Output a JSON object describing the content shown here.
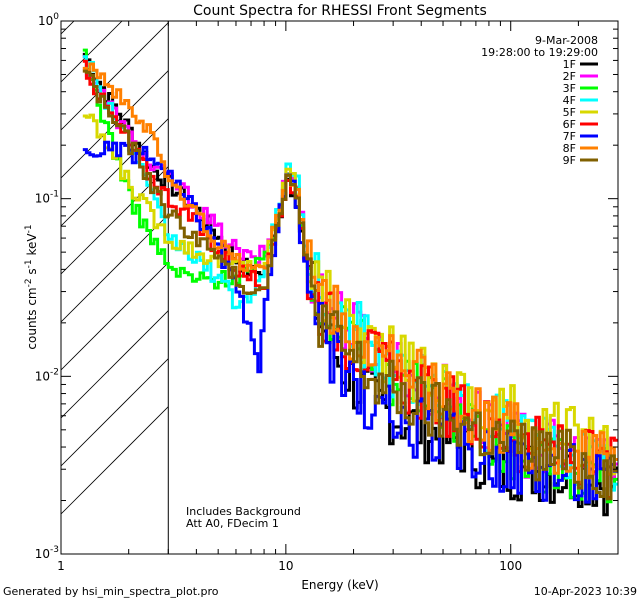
{
  "chart_data": {
    "type": "line",
    "title": "Count Spectra for RHESSI Front Segments",
    "xlabel": "Energy (keV)",
    "ylabel_main": "counts cm",
    "ylabel_exp1": "-2",
    "ylabel_mid": " s",
    "ylabel_exp2": "-1",
    "ylabel_mid2": " keV",
    "ylabel_exp3": "-1",
    "x_scale": "log",
    "y_scale": "log",
    "xlim": [
      1,
      300
    ],
    "ylim": [
      0.001,
      1
    ],
    "x_ticks": [
      {
        "value": 10,
        "label": "10"
      },
      {
        "value": 100,
        "label": "100"
      }
    ],
    "x_tick_label_first": "1",
    "y_ticks": [
      {
        "value": 1,
        "base": "10",
        "exp": "0"
      },
      {
        "value": 0.1,
        "base": "10",
        "exp": "-1"
      },
      {
        "value": 0.01,
        "base": "10",
        "exp": "-2"
      },
      {
        "value": 0.001,
        "base": "10",
        "exp": "-3"
      }
    ],
    "shaded_region_max_keV": 3,
    "date": "9-Mar-2008",
    "time_range": "19:28:00 to 19:29:00",
    "annotation_line1": "Includes Background",
    "annotation_line2": "Att A0, FDecim 1",
    "legend_position": "top-right",
    "series": [
      {
        "name": "1F",
        "color": "#000000",
        "points": [
          [
            1.25,
            0.65
          ],
          [
            1.5,
            0.42
          ],
          [
            2,
            0.24
          ],
          [
            2.5,
            0.15
          ],
          [
            3,
            0.12
          ],
          [
            4,
            0.085
          ],
          [
            5,
            0.06
          ],
          [
            6,
            0.045
          ],
          [
            7,
            0.038
          ],
          [
            8,
            0.04
          ],
          [
            9,
            0.07
          ],
          [
            10,
            0.13
          ],
          [
            11,
            0.1
          ],
          [
            12,
            0.045
          ],
          [
            14,
            0.02
          ],
          [
            17,
            0.012
          ],
          [
            20,
            0.009
          ],
          [
            25,
            0.007
          ],
          [
            30,
            0.006
          ],
          [
            40,
            0.005
          ],
          [
            50,
            0.0045
          ],
          [
            60,
            0.004
          ],
          [
            70,
            0.0035
          ],
          [
            80,
            0.003
          ],
          [
            100,
            0.003
          ],
          [
            120,
            0.003
          ],
          [
            150,
            0.0028
          ],
          [
            200,
            0.0028
          ],
          [
            250,
            0.0025
          ],
          [
            300,
            0.0025
          ]
        ]
      },
      {
        "name": "2F",
        "color": "#ff00ff",
        "points": [
          [
            1.25,
            0.6
          ],
          [
            1.5,
            0.38
          ],
          [
            2,
            0.22
          ],
          [
            2.5,
            0.15
          ],
          [
            3,
            0.13
          ],
          [
            4,
            0.09
          ],
          [
            5,
            0.065
          ],
          [
            6,
            0.05
          ],
          [
            7,
            0.045
          ],
          [
            8,
            0.05
          ],
          [
            9,
            0.08
          ],
          [
            10,
            0.14
          ],
          [
            11,
            0.12
          ],
          [
            12,
            0.05
          ],
          [
            14,
            0.03
          ],
          [
            17,
            0.022
          ],
          [
            20,
            0.018
          ],
          [
            25,
            0.014
          ],
          [
            30,
            0.012
          ],
          [
            40,
            0.009
          ],
          [
            50,
            0.008
          ],
          [
            60,
            0.007
          ],
          [
            70,
            0.006
          ],
          [
            80,
            0.005
          ],
          [
            100,
            0.0045
          ],
          [
            120,
            0.004
          ],
          [
            150,
            0.0038
          ],
          [
            200,
            0.0035
          ],
          [
            250,
            0.003
          ],
          [
            300,
            0.003
          ]
        ]
      },
      {
        "name": "3F",
        "color": "#00ff00",
        "points": [
          [
            1.25,
            0.62
          ],
          [
            1.5,
            0.3
          ],
          [
            2,
            0.1
          ],
          [
            2.5,
            0.06
          ],
          [
            3,
            0.04
          ],
          [
            4,
            0.035
          ],
          [
            5,
            0.035
          ],
          [
            6,
            0.037
          ],
          [
            7,
            0.04
          ],
          [
            8,
            0.045
          ],
          [
            9,
            0.075
          ],
          [
            10,
            0.14
          ],
          [
            11,
            0.11
          ],
          [
            12,
            0.05
          ],
          [
            14,
            0.028
          ],
          [
            17,
            0.02
          ],
          [
            20,
            0.016
          ],
          [
            25,
            0.012
          ],
          [
            30,
            0.01
          ],
          [
            40,
            0.008
          ],
          [
            50,
            0.007
          ],
          [
            60,
            0.006
          ],
          [
            70,
            0.005
          ],
          [
            80,
            0.0045
          ],
          [
            100,
            0.004
          ],
          [
            120,
            0.0035
          ],
          [
            150,
            0.0032
          ],
          [
            200,
            0.003
          ],
          [
            250,
            0.0028
          ],
          [
            300,
            0.0028
          ]
        ]
      },
      {
        "name": "4F",
        "color": "#00ffff",
        "points": [
          [
            1.25,
            0.68
          ],
          [
            1.5,
            0.4
          ],
          [
            2,
            0.2
          ],
          [
            2.5,
            0.1
          ],
          [
            3,
            0.06
          ],
          [
            4,
            0.045
          ],
          [
            5,
            0.035
          ],
          [
            6,
            0.025
          ],
          [
            7,
            0.03
          ],
          [
            8,
            0.04
          ],
          [
            9,
            0.08
          ],
          [
            10,
            0.16
          ],
          [
            11,
            0.12
          ],
          [
            12,
            0.05
          ],
          [
            14,
            0.03
          ],
          [
            17,
            0.022
          ],
          [
            20,
            0.018
          ],
          [
            25,
            0.014
          ],
          [
            30,
            0.011
          ],
          [
            40,
            0.009
          ],
          [
            50,
            0.008
          ],
          [
            60,
            0.007
          ],
          [
            70,
            0.006
          ],
          [
            80,
            0.0055
          ],
          [
            100,
            0.005
          ],
          [
            120,
            0.0045
          ],
          [
            150,
            0.004
          ],
          [
            200,
            0.0035
          ],
          [
            250,
            0.003
          ],
          [
            300,
            0.003
          ]
        ]
      },
      {
        "name": "5F",
        "color": "#d8d800",
        "points": [
          [
            1.25,
            0.3
          ],
          [
            1.5,
            0.22
          ],
          [
            2,
            0.12
          ],
          [
            2.5,
            0.08
          ],
          [
            3,
            0.06
          ],
          [
            4,
            0.05
          ],
          [
            5,
            0.045
          ],
          [
            6,
            0.042
          ],
          [
            7,
            0.042
          ],
          [
            8,
            0.045
          ],
          [
            9,
            0.075
          ],
          [
            10,
            0.15
          ],
          [
            11,
            0.11
          ],
          [
            12,
            0.05
          ],
          [
            14,
            0.03
          ],
          [
            17,
            0.022
          ],
          [
            20,
            0.018
          ],
          [
            25,
            0.015
          ],
          [
            30,
            0.012
          ],
          [
            40,
            0.01
          ],
          [
            50,
            0.009
          ],
          [
            60,
            0.008
          ],
          [
            70,
            0.007
          ],
          [
            80,
            0.0065
          ],
          [
            100,
            0.006
          ],
          [
            120,
            0.0055
          ],
          [
            150,
            0.005
          ],
          [
            200,
            0.0045
          ],
          [
            250,
            0.004
          ],
          [
            300,
            0.004
          ]
        ]
      },
      {
        "name": "6F",
        "color": "#ff0000",
        "points": [
          [
            1.25,
            0.58
          ],
          [
            1.5,
            0.35
          ],
          [
            2,
            0.2
          ],
          [
            2.5,
            0.13
          ],
          [
            3,
            0.1
          ],
          [
            4,
            0.07
          ],
          [
            5,
            0.05
          ],
          [
            6,
            0.04
          ],
          [
            7,
            0.035
          ],
          [
            8,
            0.035
          ],
          [
            9,
            0.07
          ],
          [
            10,
            0.13
          ],
          [
            11,
            0.1
          ],
          [
            12,
            0.045
          ],
          [
            14,
            0.025
          ],
          [
            17,
            0.018
          ],
          [
            20,
            0.015
          ],
          [
            25,
            0.012
          ],
          [
            30,
            0.01
          ],
          [
            40,
            0.008
          ],
          [
            50,
            0.007
          ],
          [
            60,
            0.006
          ],
          [
            70,
            0.0055
          ],
          [
            80,
            0.005
          ],
          [
            100,
            0.0045
          ],
          [
            120,
            0.004
          ],
          [
            150,
            0.0038
          ],
          [
            200,
            0.0035
          ],
          [
            250,
            0.003
          ],
          [
            300,
            0.003
          ]
        ]
      },
      {
        "name": "7F",
        "color": "#0000ff",
        "points": [
          [
            1.25,
            0.175
          ],
          [
            1.5,
            0.19
          ],
          [
            2,
            0.18
          ],
          [
            2.5,
            0.17
          ],
          [
            3,
            0.13
          ],
          [
            4,
            0.08
          ],
          [
            5,
            0.05
          ],
          [
            6,
            0.03
          ],
          [
            7,
            0.015
          ],
          [
            7.5,
            0.01
          ],
          [
            8,
            0.03
          ],
          [
            9,
            0.07
          ],
          [
            10,
            0.13
          ],
          [
            11,
            0.1
          ],
          [
            12,
            0.04
          ],
          [
            14,
            0.018
          ],
          [
            17,
            0.011
          ],
          [
            20,
            0.008
          ],
          [
            25,
            0.0065
          ],
          [
            30,
            0.0055
          ],
          [
            40,
            0.005
          ],
          [
            50,
            0.0045
          ],
          [
            60,
            0.004
          ],
          [
            70,
            0.0038
          ],
          [
            80,
            0.0035
          ],
          [
            100,
            0.0033
          ],
          [
            120,
            0.003
          ],
          [
            150,
            0.003
          ],
          [
            200,
            0.0028
          ],
          [
            250,
            0.0025
          ],
          [
            300,
            0.0025
          ]
        ]
      },
      {
        "name": "8F",
        "color": "#ff8000",
        "points": [
          [
            1.25,
            0.6
          ],
          [
            1.5,
            0.5
          ],
          [
            2,
            0.3
          ],
          [
            2.5,
            0.25
          ],
          [
            3,
            0.12
          ],
          [
            4,
            0.08
          ],
          [
            5,
            0.055
          ],
          [
            6,
            0.045
          ],
          [
            7,
            0.04
          ],
          [
            8,
            0.042
          ],
          [
            9,
            0.075
          ],
          [
            10,
            0.14
          ],
          [
            11,
            0.12
          ],
          [
            12,
            0.05
          ],
          [
            14,
            0.028
          ],
          [
            17,
            0.02
          ],
          [
            20,
            0.016
          ],
          [
            25,
            0.013
          ],
          [
            30,
            0.011
          ],
          [
            40,
            0.009
          ],
          [
            50,
            0.008
          ],
          [
            60,
            0.007
          ],
          [
            70,
            0.006
          ],
          [
            80,
            0.0055
          ],
          [
            100,
            0.005
          ],
          [
            120,
            0.0045
          ],
          [
            150,
            0.004
          ],
          [
            200,
            0.0035
          ],
          [
            250,
            0.0032
          ],
          [
            300,
            0.003
          ]
        ]
      },
      {
        "name": "9F",
        "color": "#806000",
        "points": [
          [
            1.25,
            0.55
          ],
          [
            1.5,
            0.35
          ],
          [
            2,
            0.2
          ],
          [
            2.5,
            0.12
          ],
          [
            3,
            0.08
          ],
          [
            4,
            0.06
          ],
          [
            5,
            0.045
          ],
          [
            6,
            0.035
          ],
          [
            7,
            0.03
          ],
          [
            8,
            0.035
          ],
          [
            9,
            0.07
          ],
          [
            10,
            0.14
          ],
          [
            11,
            0.1
          ],
          [
            12,
            0.045
          ],
          [
            14,
            0.022
          ],
          [
            17,
            0.015
          ],
          [
            20,
            0.012
          ],
          [
            25,
            0.009
          ],
          [
            30,
            0.008
          ],
          [
            40,
            0.0065
          ],
          [
            50,
            0.006
          ],
          [
            60,
            0.0055
          ],
          [
            70,
            0.005
          ],
          [
            80,
            0.0045
          ],
          [
            100,
            0.004
          ],
          [
            120,
            0.0038
          ],
          [
            150,
            0.0035
          ],
          [
            200,
            0.0032
          ],
          [
            250,
            0.003
          ],
          [
            300,
            0.003
          ]
        ]
      }
    ]
  },
  "footer": {
    "generated_by": "Generated by hsi_min_spectra_plot.pro",
    "timestamp": "10-Apr-2023 10:39"
  }
}
